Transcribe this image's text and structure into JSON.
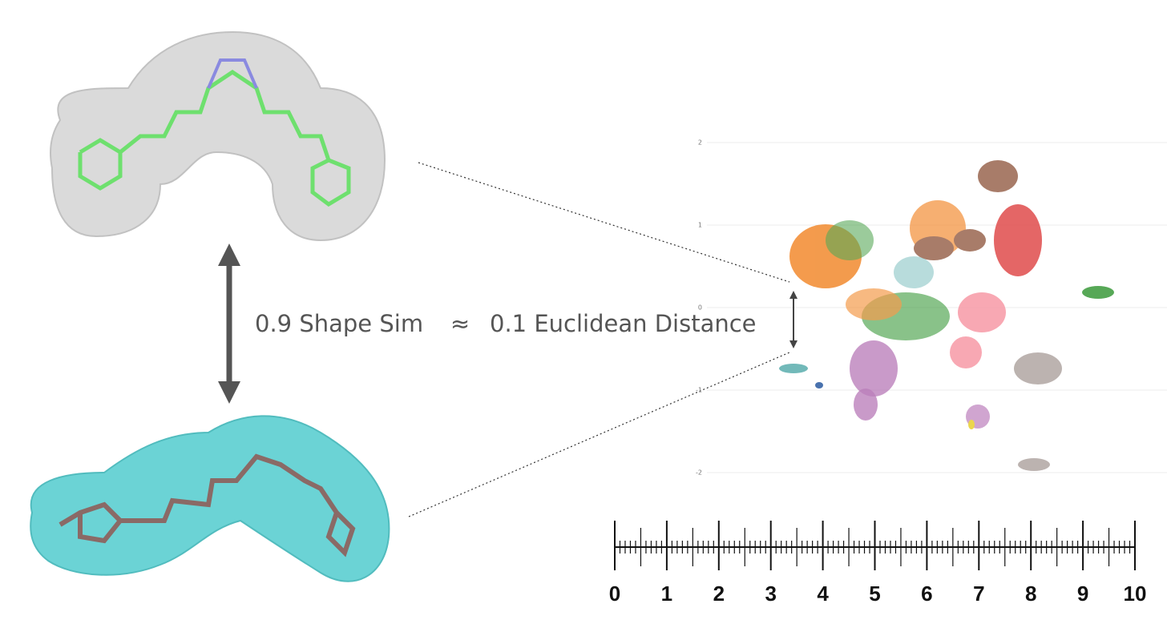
{
  "figure": {
    "shape_similarity": "0.9 Shape Sim",
    "approx": "≈",
    "euclidean_distance": "0.1 Euclidean Distance"
  },
  "embedding_plot": {
    "yticks": [
      2,
      1,
      0,
      -1,
      -2
    ]
  },
  "ruler": {
    "ticks": [
      0,
      1,
      2,
      3,
      4,
      5,
      6,
      7,
      8,
      9,
      10
    ]
  }
}
